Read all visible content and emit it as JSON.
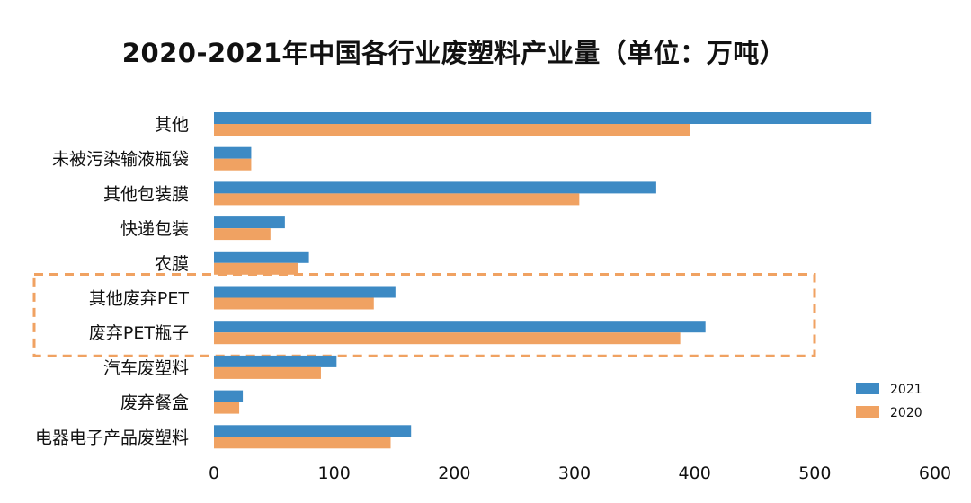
{
  "chart_data": {
    "type": "bar",
    "orientation": "horizontal",
    "title": "2020-2021年中国各行业废塑料产业量（单位：万吨）",
    "xlabel": "",
    "ylabel": "",
    "xlim": [
      0,
      600
    ],
    "xticks": [
      0,
      100,
      200,
      300,
      400,
      500,
      600
    ],
    "grid": false,
    "legend_position": "bottom-right",
    "categories": [
      "其他",
      "未被污染输液瓶袋",
      "其他包装膜",
      "快递包装",
      "农膜",
      "其他废弃PET",
      "废弃PET瓶子",
      "汽车废塑料",
      "废弃餐盒",
      "电器电子产品废塑料"
    ],
    "series": [
      {
        "name": "2021",
        "color": "#3d8ac4",
        "values": [
          547,
          31,
          368,
          59,
          79,
          151,
          409,
          102,
          24,
          164
        ]
      },
      {
        "name": "2020",
        "color": "#f0a262",
        "values": [
          396,
          31,
          304,
          47,
          70,
          133,
          388,
          89,
          21,
          147
        ]
      }
    ],
    "highlight": {
      "style": "dashed box",
      "color": "#f0a262",
      "categories": [
        "其他废弃PET",
        "废弃PET瓶子"
      ]
    }
  }
}
